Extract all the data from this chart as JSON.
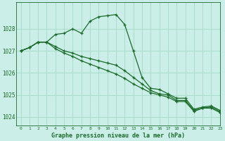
{
  "title": "Graphe pression niveau de la mer (hPa)",
  "bg_color": "#cceee8",
  "grid_color": "#aaddcc",
  "line_color": "#1a6b2a",
  "marker_color": "#1a6b2a",
  "xlim": [
    -0.5,
    23
  ],
  "ylim": [
    1023.6,
    1029.2
  ],
  "yticks": [
    1024,
    1025,
    1026,
    1027,
    1028
  ],
  "xticks": [
    0,
    1,
    2,
    3,
    4,
    5,
    6,
    7,
    8,
    9,
    10,
    11,
    12,
    13,
    14,
    15,
    16,
    17,
    18,
    19,
    20,
    21,
    22,
    23
  ],
  "series": [
    [
      1027.0,
      1027.15,
      1027.4,
      1027.4,
      1027.75,
      1027.8,
      1028.0,
      1027.8,
      1028.35,
      1028.55,
      1028.6,
      1028.65,
      1028.2,
      1027.0,
      1025.8,
      1025.3,
      1025.25,
      1025.05,
      1024.85,
      1024.85,
      1024.35,
      1024.45,
      1024.5,
      1024.3
    ],
    [
      1027.0,
      1027.15,
      1027.4,
      1027.4,
      1027.2,
      1027.0,
      1026.9,
      1026.75,
      1026.65,
      1026.55,
      1026.45,
      1026.35,
      1026.1,
      1025.8,
      1025.5,
      1025.2,
      1025.05,
      1025.0,
      1024.75,
      1024.75,
      1024.3,
      1024.4,
      1024.45,
      1024.25
    ],
    [
      1027.0,
      1027.15,
      1027.4,
      1027.4,
      1027.1,
      1026.9,
      1026.75,
      1026.55,
      1026.4,
      1026.25,
      1026.1,
      1025.95,
      1025.75,
      1025.5,
      1025.3,
      1025.1,
      1025.0,
      1024.9,
      1024.7,
      1024.7,
      1024.25,
      1024.4,
      1024.4,
      1024.2
    ]
  ]
}
